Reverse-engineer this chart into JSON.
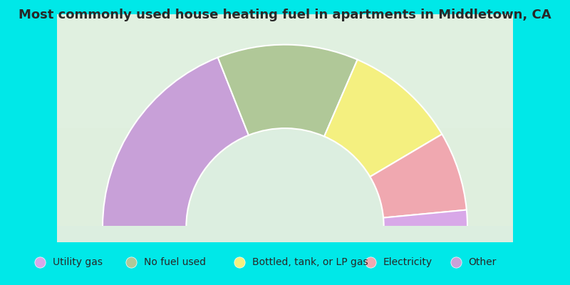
{
  "title": "Most commonly used house heating fuel in apartments in Middletown, CA",
  "segments": [
    {
      "label": "Other",
      "value": 38,
      "color": "#c8a0d8"
    },
    {
      "label": "No fuel used",
      "value": 25,
      "color": "#b0c898"
    },
    {
      "label": "Bottled, tank, or LP gas",
      "value": 20,
      "color": "#f4f080"
    },
    {
      "label": "Electricity",
      "value": 14,
      "color": "#f0a8b0"
    },
    {
      "label": "Utility gas",
      "value": 3,
      "color": "#d8a8e8"
    }
  ],
  "legend_order": [
    4,
    1,
    2,
    3,
    0
  ],
  "legend_labels": [
    "Utility gas",
    "No fuel used",
    "Bottled, tank, or LP gas",
    "Electricity",
    "Other"
  ],
  "bg_color": "#00e8e8",
  "chart_bg_top": "#f0f8f0",
  "chart_bg_bottom": "#c8e8c8",
  "title_color": "#282828",
  "title_fontsize": 13,
  "legend_fontsize": 10
}
